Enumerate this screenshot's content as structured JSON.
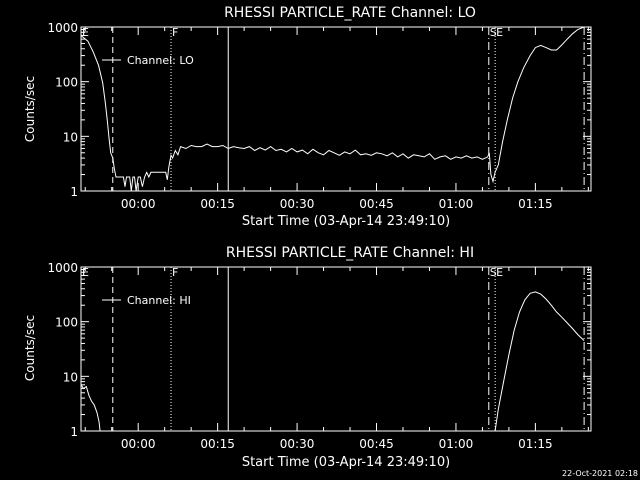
{
  "footer_timestamp": "22-Oct-2021 02:18",
  "colors": {
    "background": "#000000",
    "foreground": "#ffffff"
  },
  "chart_data": [
    {
      "type": "line",
      "title": "RHESSI PARTICLE_RATE Channel: LO",
      "xlabel": "Start Time (03-Apr-14 23:49:10)",
      "ylabel": "Counts/sec",
      "y_scale": "log",
      "ylim": [
        1,
        1000
      ],
      "y_ticks": [
        {
          "value": 1,
          "label": "1"
        },
        {
          "value": 10,
          "label": "10"
        },
        {
          "value": 100,
          "label": "100"
        },
        {
          "value": 1000,
          "label": "1000"
        }
      ],
      "x_unit": "minutes after 00:00",
      "xlim": [
        -10.8,
        85.5
      ],
      "x_ticks": [
        {
          "value": 0,
          "label": "00:00"
        },
        {
          "value": 15,
          "label": "00:15"
        },
        {
          "value": 30,
          "label": "00:30"
        },
        {
          "value": 45,
          "label": "00:45"
        },
        {
          "value": 60,
          "label": "01:00"
        },
        {
          "value": 75,
          "label": "01:15"
        }
      ],
      "legend": {
        "position": "top-left",
        "entry": "Channel: LO"
      },
      "markers": [
        {
          "x": -10.8,
          "style": "dash-dot",
          "label": "E"
        },
        {
          "x": -4.8,
          "style": "dashed",
          "label": ""
        },
        {
          "x": 6.2,
          "style": "dotted",
          "label": "F"
        },
        {
          "x": 17.0,
          "style": "solid",
          "label": ""
        },
        {
          "x": 66.2,
          "style": "dash-dot",
          "label": "S"
        },
        {
          "x": 67.4,
          "style": "dotted",
          "label": "E"
        },
        {
          "x": 84.2,
          "style": "dash-dot",
          "label": ""
        }
      ],
      "series": [
        {
          "x": [
            -10.8,
            -9.5,
            -8.5,
            -7.5,
            -6.7,
            -6.2,
            -5.8,
            -5.5,
            -5.2,
            -4.8,
            -4.5,
            -4.2,
            -4.0,
            -3.7,
            -3.4,
            -3.1,
            -2.8,
            -2.5,
            -2.2,
            -1.9,
            -1.6,
            -1.3,
            -1.0,
            -0.7,
            -0.4,
            0.0,
            0.4,
            0.8,
            1.2,
            1.6,
            2.0,
            2.4,
            2.8,
            3.2,
            3.6,
            4.0,
            4.4,
            4.8,
            5.2,
            5.5,
            5.8,
            6.2,
            6.5,
            7.0,
            7.5,
            8.0,
            9.0,
            10.0,
            11.0,
            12.0,
            13.0,
            14.0,
            15.0,
            16.0,
            17.0,
            18.0,
            19.0,
            20.0,
            21.0,
            22.0,
            23.0,
            24.0,
            25.0,
            26.0,
            27.0,
            28.0,
            29.0,
            30.0,
            31.0,
            32.0,
            33.0,
            34.0,
            35.0,
            36.0,
            37.0,
            38.0,
            39.0,
            40.0,
            41.0,
            42.0,
            43.0,
            44.0,
            45.0,
            46.0,
            47.0,
            48.0,
            49.0,
            50.0,
            51.0,
            52.0,
            53.0,
            54.0,
            55.0,
            56.0,
            57.0,
            58.0,
            59.0,
            60.0,
            61.0,
            62.0,
            63.0,
            64.0,
            65.0,
            66.0,
            66.3,
            66.6,
            67.0,
            67.4,
            68.0,
            68.8,
            69.7,
            70.7,
            71.7,
            72.8,
            74.0,
            75.0,
            76.0,
            77.0,
            78.0,
            79.0,
            80.0,
            81.0,
            82.0,
            83.0,
            84.2
          ],
          "y": [
            700,
            550,
            350,
            200,
            95,
            40,
            18,
            9,
            5,
            4,
            2.5,
            1.8,
            1.8,
            1.8,
            1.8,
            1.8,
            1.8,
            1.2,
            1.8,
            1.8,
            1.8,
            1.0,
            1.8,
            1.8,
            1.0,
            1.8,
            1.8,
            1.2,
            1.8,
            2.2,
            1.8,
            2.2,
            2.2,
            2.2,
            2.2,
            2.2,
            2.2,
            2.2,
            2.2,
            1.6,
            2.8,
            4.5,
            4.0,
            5.5,
            4.6,
            6.5,
            6.0,
            6.8,
            6.5,
            6.5,
            7.2,
            6.5,
            6.5,
            6.8,
            6.0,
            6.5,
            6.2,
            6.0,
            6.5,
            5.5,
            6.2,
            5.6,
            6.5,
            5.5,
            5.8,
            5.2,
            6.0,
            5.2,
            5.6,
            4.8,
            5.8,
            5.0,
            4.6,
            5.5,
            5.0,
            4.5,
            5.2,
            4.8,
            5.6,
            4.6,
            4.8,
            4.5,
            5.0,
            4.8,
            4.4,
            5.0,
            4.2,
            4.8,
            4.0,
            4.6,
            4.4,
            4.2,
            4.8,
            3.8,
            4.2,
            4.4,
            3.8,
            4.2,
            4.0,
            4.4,
            4.0,
            4.2,
            3.8,
            4.2,
            5.0,
            2.0,
            1.5,
            2.2,
            3.0,
            8,
            20,
            50,
            100,
            180,
            300,
            420,
            460,
            420,
            380,
            380,
            470,
            600,
            750,
            900,
            1000
          ]
        }
      ]
    },
    {
      "type": "line",
      "title": "RHESSI PARTICLE_RATE Channel: HI",
      "xlabel": "Start Time (03-Apr-14 23:49:10)",
      "ylabel": "Counts/sec",
      "y_scale": "log",
      "ylim": [
        1,
        1000
      ],
      "y_ticks": [
        {
          "value": 1,
          "label": "1"
        },
        {
          "value": 10,
          "label": "10"
        },
        {
          "value": 100,
          "label": "100"
        },
        {
          "value": 1000,
          "label": "1000"
        }
      ],
      "x_unit": "minutes after 00:00",
      "xlim": [
        -10.8,
        85.5
      ],
      "x_ticks": [
        {
          "value": 0,
          "label": "00:00"
        },
        {
          "value": 15,
          "label": "00:15"
        },
        {
          "value": 30,
          "label": "00:30"
        },
        {
          "value": 45,
          "label": "00:45"
        },
        {
          "value": 60,
          "label": "01:00"
        },
        {
          "value": 75,
          "label": "01:15"
        }
      ],
      "legend": {
        "position": "top-left",
        "entry": "Channel: HI"
      },
      "markers": [
        {
          "x": -10.8,
          "style": "dash-dot",
          "label": "E"
        },
        {
          "x": -4.8,
          "style": "dashed",
          "label": ""
        },
        {
          "x": 6.2,
          "style": "dotted",
          "label": "F"
        },
        {
          "x": 17.0,
          "style": "solid",
          "label": ""
        },
        {
          "x": 66.2,
          "style": "dash-dot",
          "label": "S"
        },
        {
          "x": 67.4,
          "style": "dotted",
          "label": "E"
        },
        {
          "x": 84.2,
          "style": "dash-dot",
          "label": ""
        }
      ],
      "series": [
        {
          "x": [
            -10.8,
            -10.3,
            -9.8,
            -9.3,
            -8.8,
            -8.3,
            -7.8,
            -7.4,
            -7.2,
            67.4,
            68.0,
            69.0,
            70.0,
            71.0,
            72.0,
            73.0,
            74.0,
            75.0,
            76.0,
            77.0,
            78.0,
            79.0,
            80.0,
            81.0,
            82.0,
            83.0,
            84.2
          ],
          "y": [
            7,
            6,
            6.5,
            4.5,
            3.5,
            3.0,
            2.2,
            1.5,
            1.0,
            1.0,
            2.5,
            8,
            25,
            70,
            150,
            250,
            330,
            350,
            320,
            260,
            200,
            150,
            120,
            95,
            75,
            58,
            45
          ]
        }
      ]
    }
  ]
}
